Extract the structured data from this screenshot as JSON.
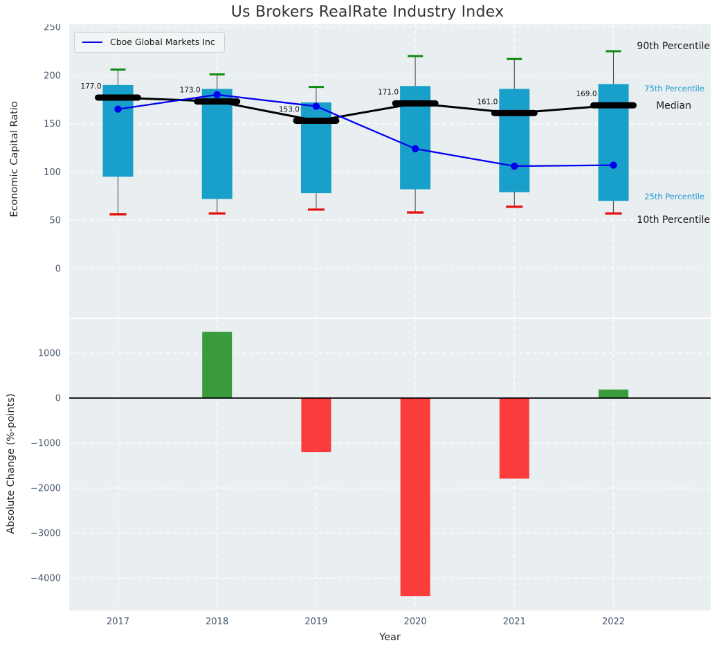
{
  "title": "Us Brokers RealRate Industry Index",
  "legend": {
    "label": "Cboe Global Markets Inc"
  },
  "right_labels": [
    {
      "key": "p90",
      "text": "90th Percentile",
      "color": "#1a1a1a",
      "size": 14
    },
    {
      "key": "p75",
      "text": "75th Percentile",
      "color": "#2099cc",
      "size": 11.5
    },
    {
      "key": "median",
      "text": "Median",
      "color": "#1a1a1a",
      "size": 14
    },
    {
      "key": "p25",
      "text": "25th Percentile",
      "color": "#2099cc",
      "size": 11.5
    },
    {
      "key": "p10",
      "text": "10th Percentile",
      "color": "#1a1a1a",
      "size": 14
    }
  ],
  "colors": {
    "axes_bg": "#e9eef1",
    "grid": "#ffffff",
    "tick_label": "#44566b",
    "axis_label": "#262626",
    "box": "#18a0cb",
    "whisker": "#4f4f4f",
    "p90_tick": "#0f8b0f",
    "p10_tick": "#e60d0d",
    "median": "#000000",
    "company_line": "#0101ee",
    "bar_positive": "#3a9b3d",
    "bar_negative": "#fa3c3c",
    "annotation": "#111111"
  },
  "chart_data": [
    {
      "type": "box-whisker-line",
      "title": "Us Brokers RealRate Industry Index",
      "ylabel": "Economic Capital Ratio",
      "x": [
        2017,
        2018,
        2019,
        2020,
        2021,
        2022
      ],
      "series": [
        {
          "name": "90th Percentile",
          "role": "p90",
          "values": [
            206,
            201,
            188,
            220,
            217,
            225
          ]
        },
        {
          "name": "75th Percentile",
          "role": "p75",
          "values": [
            190,
            186,
            172,
            189,
            186,
            191
          ]
        },
        {
          "name": "Median",
          "role": "median",
          "values": [
            177,
            173,
            153,
            171,
            161,
            169
          ]
        },
        {
          "name": "25th Percentile",
          "role": "p25",
          "values": [
            95,
            72,
            78,
            82,
            79,
            70
          ]
        },
        {
          "name": "10th Percentile",
          "role": "p10",
          "values": [
            56,
            57,
            61,
            58,
            64,
            57
          ]
        },
        {
          "name": "Cboe Global Markets Inc",
          "role": "company",
          "values": [
            165,
            180,
            168,
            124,
            106,
            107
          ]
        }
      ],
      "median_annotations": [
        "177.0",
        "173.0",
        "153.0",
        "171.0",
        "161.0",
        "169.0"
      ],
      "yticks": [
        250,
        200,
        150,
        100,
        50,
        0
      ],
      "ylim": [
        -51,
        253
      ],
      "grid": true,
      "legend_position": "upper left"
    },
    {
      "type": "bar",
      "ylabel": "Absolute Change (%-points)",
      "xlabel": "Year",
      "x": [
        2017,
        2018,
        2019,
        2020,
        2021,
        2022
      ],
      "values": [
        null,
        1470,
        -1200,
        -4400,
        -1790,
        190
      ],
      "yticks": [
        1000,
        0,
        -1000,
        -2000,
        -3000,
        -4000
      ],
      "ylim": [
        -4720,
        1755
      ],
      "grid": true,
      "zero_line": true
    }
  ]
}
